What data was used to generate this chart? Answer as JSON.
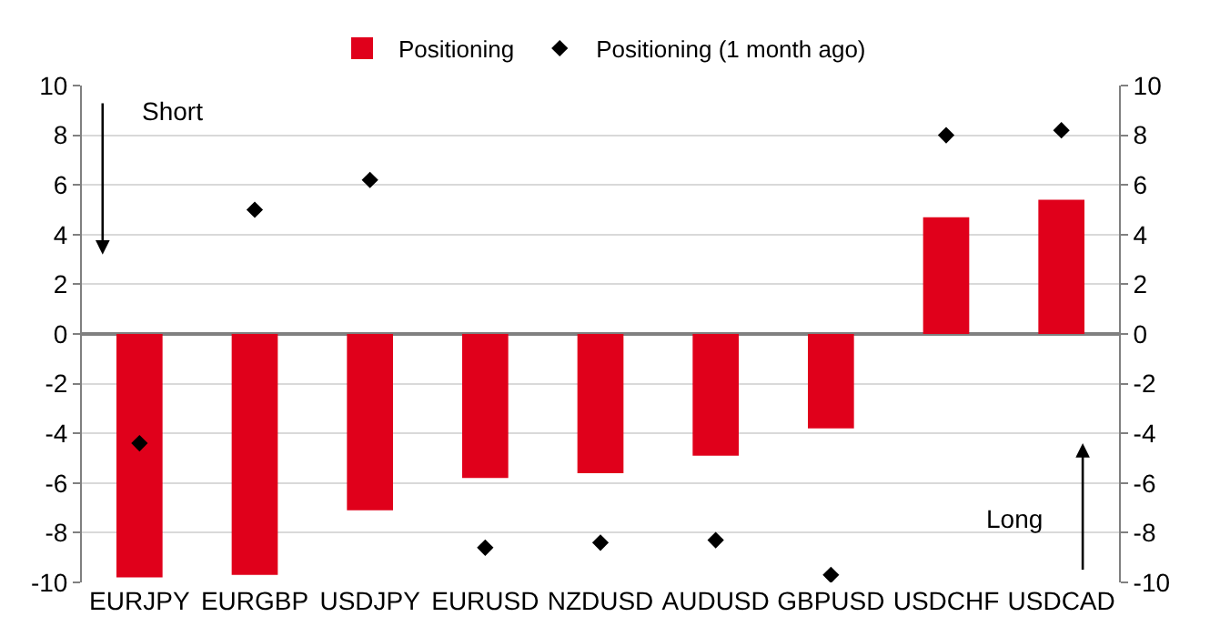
{
  "chart_data": {
    "type": "bar",
    "categories": [
      "EURJPY",
      "EURGBP",
      "USDJPY",
      "EURUSD",
      "NZDUSD",
      "AUDUSD",
      "GBPUSD",
      "USDCHF",
      "USDCAD"
    ],
    "series": [
      {
        "name": "Positioning",
        "color": "#e0001b",
        "values": [
          -9.8,
          -9.7,
          -7.1,
          -5.8,
          -5.6,
          -4.9,
          -3.8,
          4.7,
          5.4
        ]
      },
      {
        "name": "Positioning (1 month ago)",
        "type": "scatter",
        "color": "#000000",
        "marker": "diamond",
        "values": [
          -4.4,
          5.0,
          6.2,
          -8.6,
          -8.4,
          -8.3,
          -9.7,
          8.0,
          8.2
        ]
      }
    ],
    "ylim": [
      -10,
      10
    ],
    "yticks": [
      -10,
      -8,
      -6,
      -4,
      -2,
      0,
      2,
      4,
      6,
      8,
      10
    ],
    "y2lim": [
      -10,
      10
    ],
    "y2ticks": [
      -10,
      -8,
      -6,
      -4,
      -2,
      0,
      2,
      4,
      6,
      8,
      10
    ],
    "annotations": [
      "Short",
      "Long"
    ],
    "grid": "y",
    "legend": "top"
  }
}
